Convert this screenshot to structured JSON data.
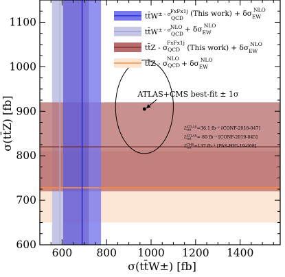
{
  "chart_data": {
    "type": "scatter",
    "xlabel": "σ(tt̄W±) [fb]",
    "ylabel": "σ(tt̄Z) [fb]",
    "xlim": [
      500,
      1580
    ],
    "ylim": [
      600,
      1150
    ],
    "xticks": [
      600,
      800,
      1000,
      1200,
      1400
    ],
    "yticks": [
      600,
      700,
      800,
      900,
      1000,
      1100
    ],
    "legend_position": "top-right",
    "grid": false,
    "colors": {
      "ttw_fxfx": "#7777ee",
      "ttw_nlo": "#c6c6e6",
      "ttz_fxfx": "#b76b6b",
      "ttz_nlo": "#fde6d4",
      "ttz_nlo_line": "#ff8c3a",
      "ttw_nlo_line": "#b0b0d8",
      "ttz_fxfx_line": "#7a2a2a",
      "ttw_fxfx_line": "#1a1acc"
    },
    "series": [
      {
        "name": "tt̄W± - σ_QCD^FxFx1j (This work) + δσ_EW^NLO",
        "orientation": "vertical",
        "central": 690,
        "band_low": 605,
        "band_high": 775,
        "inner_band_low": 605,
        "inner_band_high": 720
      },
      {
        "name": "tt̄W± - σ_QCD^NLO + δσ_EW^NLO",
        "orientation": "vertical",
        "central": 590,
        "band_low": 555,
        "band_high": 605
      },
      {
        "name": "tt̄Z - σ_QCD^FxFx1j (This work) + δσ_EW^NLO",
        "orientation": "horizontal",
        "central": 820,
        "band_low": 720,
        "band_high": 920,
        "inner_band_low": 725,
        "inner_band_high": 810
      },
      {
        "name": "tt̄Z - σ_QCD^NLO + δσ_EW^NLO",
        "orientation": "horizontal",
        "central": 728,
        "band_low": 650,
        "band_high": 815
      }
    ],
    "best_fit": {
      "label": "ATLAS+CMS  best-fit ± 1σ",
      "x": 970,
      "y": 905,
      "ellipse_rx": 130,
      "ellipse_ry": 105,
      "ellipse_cy": 910
    }
  },
  "legend": {
    "e1": {
      "a": "tt̄W",
      "b": "± - σ",
      "c": "QCD",
      "d": "FxFx1j",
      "e": " (This work) + δσ",
      "f": "EW",
      "g": "NLO"
    },
    "e2": {
      "a": "tt̄W",
      "b": "± - σ",
      "c": "QCD",
      "d": "NLO",
      "e": " + δσ",
      "f": "EW",
      "g": "NLO"
    },
    "e3": {
      "a": "tt̄Z - σ",
      "c": "QCD",
      "d": "FxFx1j",
      "e": " (This work) + δσ",
      "f": "EW",
      "g": "NLO"
    },
    "e4": {
      "a": "tt̄Z - σ",
      "c": "QCD",
      "d": "NLO",
      "e": " + δσ",
      "f": "EW",
      "g": "NLO"
    }
  },
  "annotations": {
    "best_fit_label": "ATLAS+CMS  best-fit ± 1σ",
    "lumi": [
      {
        "sym": "L",
        "sub": "int",
        "sup": "ATLAS",
        "text": "=36.1 fb⁻¹ [CONF-2018-047]"
      },
      {
        "sym": "L",
        "sub": "int",
        "sup": "ATLAS",
        "text": "= 80 fb⁻¹ [CONF-2019-045]"
      },
      {
        "sym": "L",
        "sub": "int",
        "sup": "CMS",
        "text": "=137 fb⁻¹ [PAS-HIG-19-008]"
      }
    ]
  }
}
